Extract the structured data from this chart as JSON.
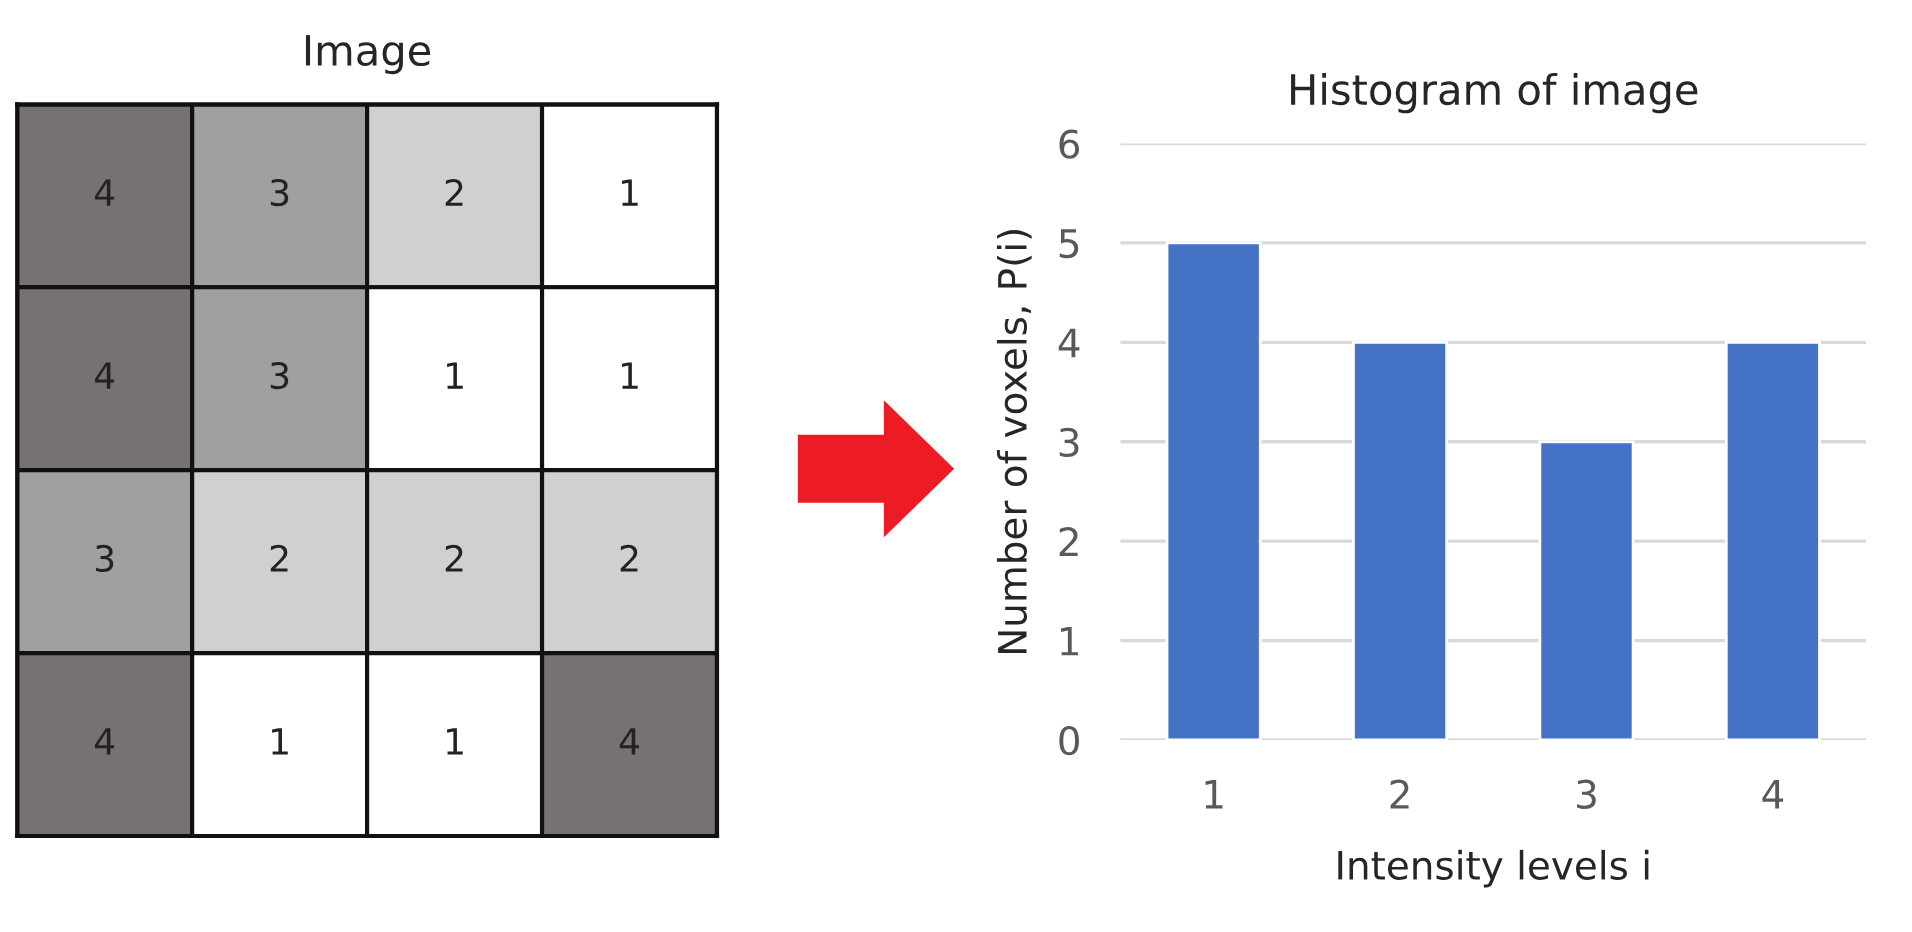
{
  "chart_data": [
    {
      "type": "heatmap",
      "title": "Image",
      "categories": [
        null,
        null,
        null,
        null
      ],
      "y_categories": [
        null,
        null,
        null,
        null
      ],
      "cells": [
        [
          4,
          3,
          2,
          1
        ],
        [
          4,
          3,
          1,
          1
        ],
        [
          3,
          2,
          2,
          2
        ],
        [
          4,
          1,
          1,
          4
        ]
      ],
      "data_labels": true
    },
    {
      "type": "bar",
      "title": "Histogram of image",
      "xlabel": "Intensity levels i",
      "ylabel": "Number of voxels, P(i)",
      "categories": [
        "1",
        "2",
        "3",
        "4"
      ],
      "values": [
        5,
        4,
        3,
        4
      ],
      "color": "#4472c4",
      "ylim": [
        0,
        6
      ],
      "yticks": [
        0,
        1,
        2,
        3,
        4,
        5,
        6
      ],
      "grid": "y"
    }
  ]
}
